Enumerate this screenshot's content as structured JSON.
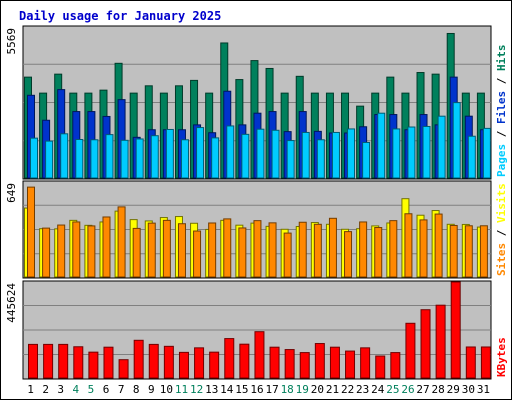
{
  "chart_data": {
    "type": "bar",
    "title": "Daily usage for January 2025",
    "days": [
      "1",
      "2",
      "3",
      "4",
      "5",
      "6",
      "7",
      "8",
      "9",
      "10",
      "11",
      "12",
      "13",
      "14",
      "15",
      "16",
      "17",
      "18",
      "19",
      "20",
      "21",
      "22",
      "23",
      "24",
      "25",
      "26",
      "27",
      "28",
      "29",
      "30",
      "31"
    ],
    "weekend_days": [
      "4",
      "5",
      "11",
      "12",
      "18",
      "19",
      "25",
      "26"
    ],
    "weekend_label_color": "#00805c",
    "weekday_label_color": "#000000",
    "background_color": "#c0c0c0",
    "panels": [
      {
        "id": "top",
        "max_label": "5569",
        "ymax": 5569,
        "legend": [
          {
            "text": "Pages",
            "color": "#00ccff"
          },
          {
            "text": " / ",
            "color": "#000000"
          },
          {
            "text": "Files",
            "color": "#0033cc"
          },
          {
            "text": " / ",
            "color": "#000000"
          },
          {
            "text": "Hits",
            "color": "#00805c"
          }
        ],
        "series": [
          {
            "name": "Hits",
            "color": "#00805c",
            "values": [
              3720,
              3130,
              3830,
              3130,
              3130,
              3240,
              4230,
              3130,
              3400,
              3130,
              3400,
              3600,
              3130,
              4980,
              3630,
              4330,
              4040,
              3130,
              3750,
              3130,
              3130,
              3130,
              2650,
              3130,
              3720,
              3130,
              3890,
              3830,
              5330,
              3130,
              3130
            ]
          },
          {
            "name": "Files",
            "color": "#0033cc",
            "values": [
              3050,
              2130,
              3260,
              2450,
              2450,
              2270,
              2890,
              1500,
              1780,
              1780,
              1780,
              1960,
              1670,
              3200,
              1960,
              2390,
              2450,
              1710,
              2450,
              1720,
              1660,
              1660,
              1890,
              2340,
              2340,
              1780,
              2340,
              1960,
              3720,
              2280,
              1780
            ]
          },
          {
            "name": "Pages",
            "color": "#00ccff",
            "values": [
              1470,
              1360,
              1630,
              1420,
              1410,
              1600,
              1390,
              1440,
              1560,
              1790,
              1410,
              1860,
              1480,
              1920,
              1610,
              1800,
              1760,
              1380,
              1680,
              1410,
              1680,
              1810,
              1310,
              2390,
              1810,
              1880,
              1900,
              2280,
              2780,
              1540,
              1830
            ]
          }
        ]
      },
      {
        "id": "middle",
        "max_label": "649",
        "ymax": 649,
        "legend": [
          {
            "text": "Sites",
            "color": "#ff8800"
          },
          {
            "text": " / ",
            "color": "#000000"
          },
          {
            "text": "Visits",
            "color": "#ffff00"
          }
        ],
        "series": [
          {
            "name": "Visits",
            "color": "#ffff00",
            "values": [
              471,
              330,
              329,
              387,
              353,
              376,
              450,
              392,
              383,
              406,
              413,
              367,
              325,
              387,
              354,
              368,
              346,
              326,
              345,
              372,
              360,
              326,
              330,
              349,
              369,
              535,
              422,
              454,
              360,
              359,
              341
            ]
          },
          {
            "name": "Sites",
            "color": "#ff8800",
            "values": [
              614,
              334,
              355,
              376,
              349,
              410,
              479,
              332,
              368,
              387,
              364,
              314,
              369,
              397,
              335,
              385,
              370,
              300,
              374,
              360,
              401,
              310,
              376,
              338,
              385,
              432,
              390,
              430,
              352,
              350,
              350
            ]
          }
        ]
      },
      {
        "id": "bottom",
        "max_label": "445624",
        "ymax": 445624,
        "legend": [
          {
            "text": "KBytes",
            "color": "#ff0000"
          }
        ],
        "series": [
          {
            "name": "KBytes",
            "color": "#ff0000",
            "values": [
              156000,
              156000,
              156000,
              145000,
              120000,
              143000,
              85000,
              175000,
              156000,
              147000,
              119000,
              140000,
              120000,
              183000,
              157000,
              215000,
              143000,
              132000,
              118000,
              160000,
              143000,
              125000,
              140000,
              102000,
              118000,
              254000,
              317000,
              338000,
              447000,
              144000,
              144000
            ]
          }
        ]
      }
    ]
  }
}
